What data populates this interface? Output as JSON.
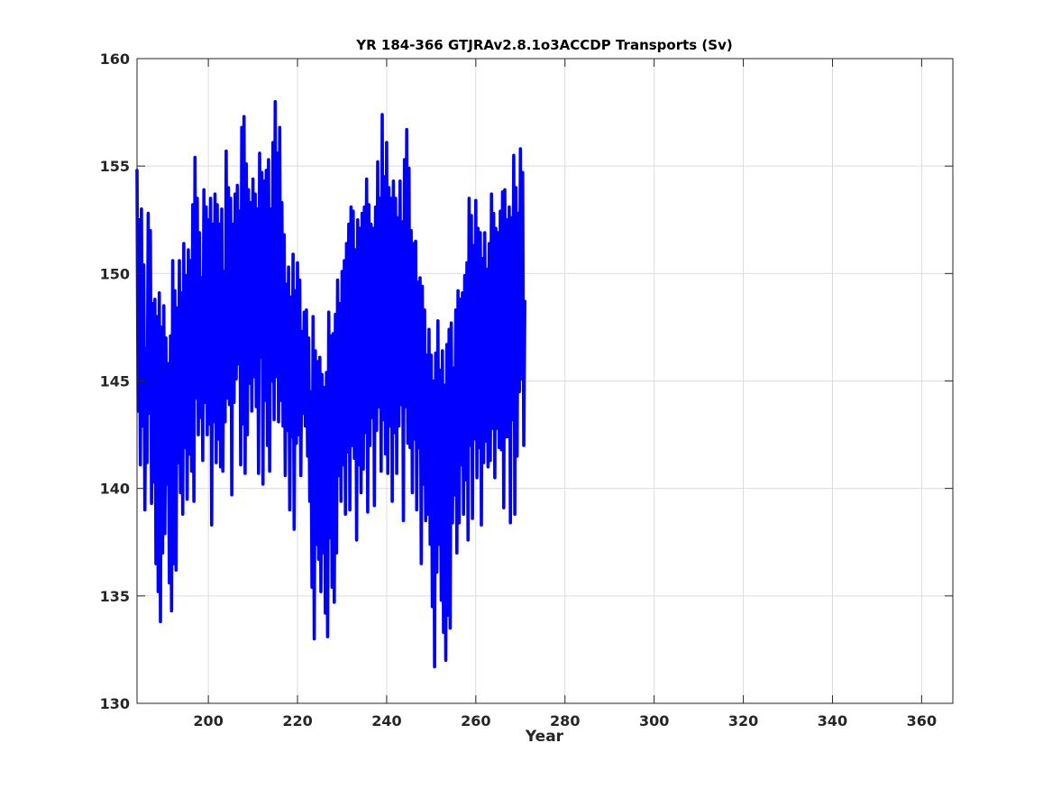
{
  "chart_data": {
    "type": "line",
    "title": "YR 184-366 GTJRAv2.8.1o3ACCDP Transports (Sv)",
    "xlabel": "Year",
    "ylabel": "",
    "xlim": [
      184,
      367
    ],
    "ylim": [
      130,
      160
    ],
    "xticks": [
      200,
      220,
      240,
      260,
      280,
      300,
      320,
      340,
      360
    ],
    "yticks": [
      130,
      135,
      140,
      145,
      150,
      155,
      160
    ],
    "grid": true,
    "series": [
      {
        "name": "",
        "color": "#0000ff",
        "x_start": 184.0,
        "x_step": 0.25,
        "values": [
          154.8,
          143.6,
          152.5,
          141.1,
          153.0,
          142.9,
          150.4,
          139.0,
          146.5,
          141.2,
          152.8,
          143.5,
          152.0,
          139.3,
          148.6,
          140.3,
          148.8,
          136.5,
          148.0,
          135.2,
          149.1,
          133.8,
          147.5,
          137.0,
          148.5,
          137.9,
          147.0,
          140.2,
          145.8,
          135.6,
          147.1,
          134.3,
          150.6,
          136.5,
          149.2,
          136.2,
          148.4,
          141.2,
          150.6,
          139.8,
          149.1,
          138.8,
          151.4,
          141.9,
          149.9,
          139.5,
          151.1,
          141.6,
          150.6,
          140.8,
          153.2,
          139.4,
          155.4,
          144.2,
          153.5,
          142.5,
          151.9,
          143.3,
          149.8,
          141.3,
          153.9,
          144.0,
          153.1,
          142.5,
          152.5,
          143.0,
          153.5,
          138.3,
          152.3,
          143.1,
          153.7,
          141.2,
          153.2,
          142.3,
          152.3,
          141.0,
          153.0,
          140.8,
          150.1,
          143.1,
          155.7,
          144.2,
          154.0,
          143.9,
          153.5,
          139.7,
          152.3,
          144.0,
          153.7,
          145.1,
          154.1,
          145.8,
          152.9,
          141.1,
          156.8,
          143.0,
          157.3,
          140.7,
          155.1,
          142.5,
          153.9,
          144.9,
          153.3,
          143.6,
          154.4,
          145.2,
          153.7,
          143.8,
          153.0,
          140.7,
          155.6,
          146.1,
          154.7,
          140.2,
          154.3,
          144.1,
          154.8,
          142.0,
          155.3,
          140.8,
          153.0,
          145.0,
          156.1,
          143.2,
          158.0,
          145.2,
          155.6,
          143.1,
          156.8,
          144.1,
          153.3,
          142.9,
          151.8,
          140.6,
          149.5,
          142.7,
          150.3,
          139.0,
          148.9,
          142.4,
          150.9,
          138.1,
          149.2,
          142.1,
          150.5,
          142.5,
          149.7,
          140.6,
          147.3,
          143.5,
          148.2,
          142.9,
          148.3,
          141.5,
          147.0,
          139.4,
          144.5,
          135.4,
          148.0,
          133.0,
          146.4,
          137.4,
          145.9,
          136.7,
          146.1,
          135.2,
          145.3,
          137.0,
          144.7,
          134.2,
          145.4,
          133.1,
          148.2,
          137.7,
          147.1,
          135.4,
          147.2,
          134.7,
          148.1,
          137.0,
          149.7,
          140.6,
          148.6,
          139.4,
          150.1,
          141.1,
          150.6,
          138.8,
          151.4,
          141.7,
          152.3,
          139.0,
          153.1,
          142.0,
          152.9,
          141.4,
          151.1,
          137.6,
          152.5,
          141.1,
          152.1,
          139.8,
          152.8,
          140.9,
          153.1,
          142.6,
          154.4,
          138.9,
          153.2,
          142.0,
          152.3,
          143.3,
          152.1,
          139.2,
          153.1,
          142.7,
          155.2,
          143.8,
          153.5,
          140.8,
          157.4,
          143.2,
          154.5,
          141.6,
          156.1,
          140.7,
          154.0,
          142.9,
          153.5,
          139.4,
          154.3,
          142.6,
          153.5,
          140.7,
          152.6,
          142.9,
          154.3,
          143.9,
          152.4,
          138.5,
          155.3,
          143.8,
          156.7,
          142.1,
          154.9,
          141.9,
          152.0,
          139.8,
          151.4,
          142.3,
          151.5,
          139.0,
          149.6,
          141.9,
          149.8,
          136.5,
          149.4,
          140.2,
          148.3,
          138.5,
          146.2,
          138.8,
          147.4,
          137.4,
          146.2,
          134.5,
          145.0,
          131.7,
          146.3,
          136.1,
          147.8,
          137.4,
          145.5,
          134.8,
          146.4,
          133.3,
          144.8,
          132.0,
          146.7,
          134.1,
          147.4,
          133.5,
          147.7,
          138.4,
          145.6,
          139.7,
          148.3,
          137.0,
          149.2,
          138.4,
          148.8,
          141.1,
          149.1,
          138.8,
          149.9,
          140.4,
          150.5,
          137.6,
          153.5,
          142.0,
          152.7,
          138.6,
          151.3,
          142.3,
          153.4,
          140.5,
          152.1,
          141.9,
          151.9,
          138.3,
          150.7,
          141.2,
          151.9,
          142.2,
          150.2,
          141.0,
          151.4,
          141.3,
          153.7,
          142.8,
          152.8,
          140.5,
          152.1,
          142.8,
          151.9,
          141.9,
          152.9,
          141.8,
          153.8,
          139.1,
          153.9,
          142.4,
          152.5,
          142.4,
          153.1,
          138.4,
          152.6,
          143.2,
          155.5,
          138.8,
          154.0,
          141.5,
          152.8,
          144.5,
          155.8,
          145.1,
          154.7,
          142.0,
          148.7
        ]
      }
    ]
  }
}
